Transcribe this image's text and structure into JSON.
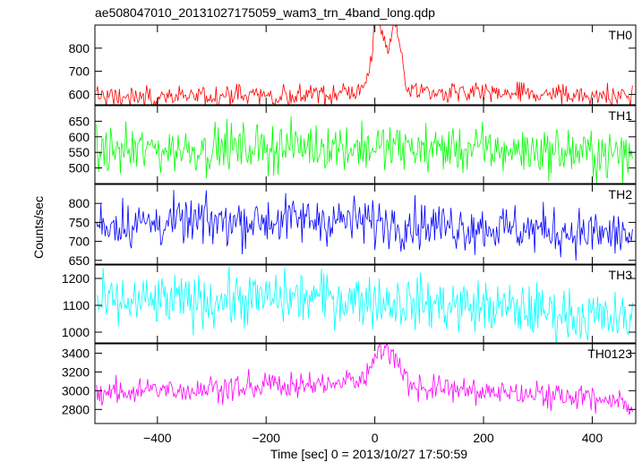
{
  "chart_data": {
    "type": "line",
    "title": "ae508047010_20131027175059_wam3_trn_4band_long.qdp",
    "xlabel": "Time [sec] 0 = 2013/10/27 17:50:59",
    "ylabel": "Counts/sec",
    "xlim": [
      -515,
      480
    ],
    "x_ticks": [
      -400,
      -200,
      0,
      200,
      400
    ],
    "x_tick_labels": [
      "−400",
      "−200",
      "0",
      "200",
      "400"
    ],
    "x_sampling": {
      "start": -512,
      "end": 474,
      "step": 2
    },
    "grid": false,
    "legend": "none",
    "panels": [
      {
        "name": "TH0",
        "color": "#ff0000",
        "ylim": [
          555,
          900
        ],
        "y_ticks": [
          600,
          700,
          800
        ],
        "y_tick_labels": [
          "600",
          "700",
          "800"
        ],
        "baseline": [
          [
            -512,
            588
          ],
          [
            -100,
            600
          ],
          [
            300,
            600
          ],
          [
            474,
            593
          ]
        ],
        "noise": 24,
        "features": [
          {
            "center": 5,
            "width": 10,
            "amp": 290
          },
          {
            "center": 37,
            "width": 10,
            "amp": 270
          },
          {
            "center": 20,
            "width": 35,
            "amp": 40
          }
        ]
      },
      {
        "name": "TH1",
        "color": "#00ff00",
        "ylim": [
          450,
          700
        ],
        "y_ticks": [
          500,
          550,
          600,
          650
        ],
        "y_tick_labels": [
          "500",
          "550",
          "600",
          "650"
        ],
        "baseline": [
          [
            -512,
            555
          ],
          [
            -100,
            570
          ],
          [
            300,
            555
          ],
          [
            474,
            540
          ]
        ],
        "noise": 38,
        "features": []
      },
      {
        "name": "TH2",
        "color": "#0000ff",
        "ylim": [
          640,
          850
        ],
        "y_ticks": [
          650,
          700,
          750,
          800
        ],
        "y_tick_labels": [
          "650",
          "700",
          "750",
          "800"
        ],
        "baseline": [
          [
            -512,
            745
          ],
          [
            -100,
            758
          ],
          [
            300,
            730
          ],
          [
            474,
            715
          ]
        ],
        "noise": 32,
        "features": []
      },
      {
        "name": "TH3",
        "color": "#00ffff",
        "ylim": [
          960,
          1250
        ],
        "y_ticks": [
          1000,
          1100,
          1200
        ],
        "y_tick_labels": [
          "1000",
          "1100",
          "1200"
        ],
        "baseline": [
          [
            -512,
            1105
          ],
          [
            -100,
            1130
          ],
          [
            300,
            1080
          ],
          [
            474,
            1040
          ]
        ],
        "noise": 50,
        "features": []
      },
      {
        "name": "TH0123",
        "color": "#ff00ff",
        "ylim": [
          2650,
          3500
        ],
        "y_ticks": [
          2800,
          3000,
          3200,
          3400
        ],
        "y_tick_labels": [
          "2800",
          "3000",
          "3200",
          "3400"
        ],
        "baseline": [
          [
            -512,
            2970
          ],
          [
            -100,
            3080
          ],
          [
            300,
            2960
          ],
          [
            474,
            2860
          ]
        ],
        "noise": 70,
        "features": [
          {
            "center": 8,
            "width": 14,
            "amp": 300
          },
          {
            "center": 37,
            "width": 12,
            "amp": 240
          },
          {
            "center": 20,
            "width": 40,
            "amp": 80
          }
        ]
      }
    ]
  }
}
